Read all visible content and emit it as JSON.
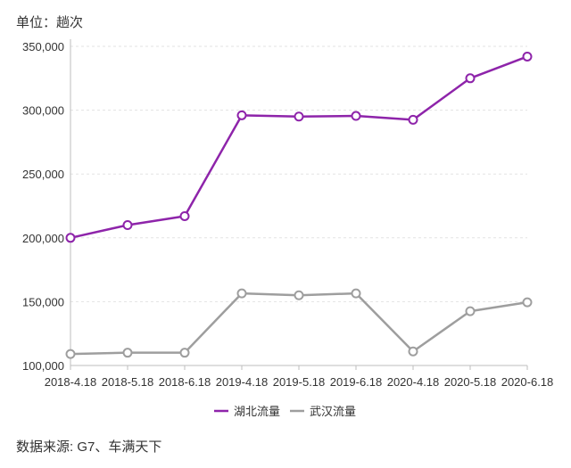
{
  "unit_label": "单位：趟次",
  "source_label": "数据来源: G7、车满天下",
  "chart_data": {
    "type": "line",
    "x": [
      "2018-4.18",
      "2018-5.18",
      "2018-6.18",
      "2019-4.18",
      "2019-5.18",
      "2019-6.18",
      "2020-4.18",
      "2020-5.18",
      "2020-6.18"
    ],
    "ylim": [
      100000,
      350000
    ],
    "yticks": [
      100000,
      150000,
      200000,
      250000,
      300000,
      350000
    ],
    "ytick_labels": [
      "100,000",
      "150,000",
      "200,000",
      "250,000",
      "300,000",
      "350,000"
    ],
    "grid": true,
    "legend_position": "bottom-center",
    "series": [
      {
        "name": "湖北流量",
        "color": "#8e24aa",
        "values": [
          200000,
          210000,
          217000,
          296000,
          295000,
          295500,
          292500,
          325000,
          342000
        ]
      },
      {
        "name": "武汉流量",
        "color": "#9e9e9e",
        "values": [
          109000,
          110000,
          110000,
          156500,
          155000,
          156500,
          111000,
          142500,
          149500
        ]
      }
    ]
  }
}
